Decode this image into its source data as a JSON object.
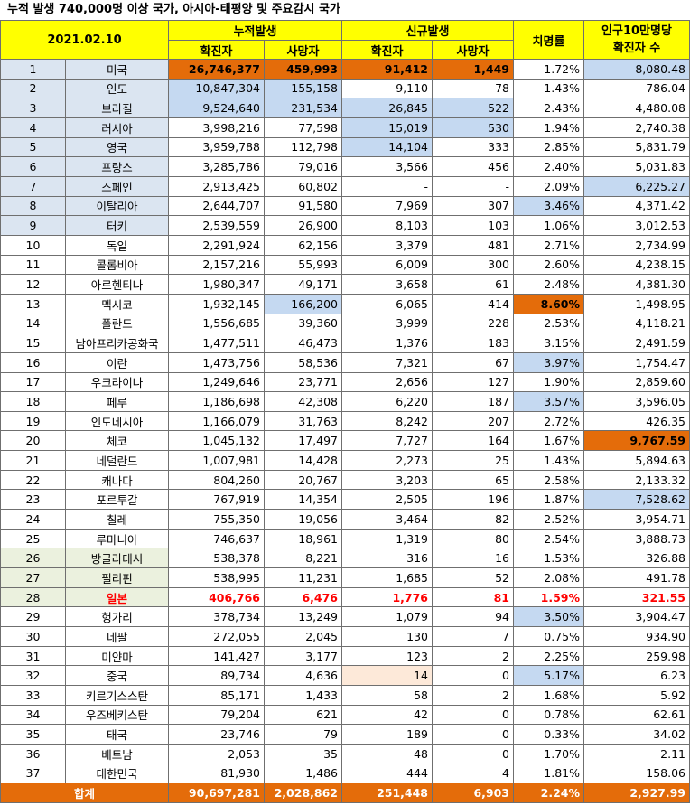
{
  "title": "누적 발생 740,000명 이상 국가, 아시아-태평양 및 주요감시 국가",
  "header": {
    "date": "2021.02.10",
    "cumulative": "누적발생",
    "new": "신규발생",
    "fatality": "치명률",
    "per100k_line1": "인구10만명당",
    "per100k_line2": "확진자 수",
    "confirmed": "확진자",
    "deaths": "사망자",
    "new_confirmed": "확진자",
    "new_deaths": "사망자"
  },
  "rows": [
    {
      "n": "1",
      "country": "미국",
      "conf": "26,746,377",
      "death": "459,993",
      "nconf": "91,412",
      "ndeath": "1,449",
      "cfr": "1.72%",
      "per": "8,080.48"
    },
    {
      "n": "2",
      "country": "인도",
      "conf": "10,847,304",
      "death": "155,158",
      "nconf": "9,110",
      "ndeath": "78",
      "cfr": "1.43%",
      "per": "786.04"
    },
    {
      "n": "3",
      "country": "브라질",
      "conf": "9,524,640",
      "death": "231,534",
      "nconf": "26,845",
      "ndeath": "522",
      "cfr": "2.43%",
      "per": "4,480.08"
    },
    {
      "n": "4",
      "country": "러시아",
      "conf": "3,998,216",
      "death": "77,598",
      "nconf": "15,019",
      "ndeath": "530",
      "cfr": "1.94%",
      "per": "2,740.38"
    },
    {
      "n": "5",
      "country": "영국",
      "conf": "3,959,788",
      "death": "112,798",
      "nconf": "14,104",
      "ndeath": "333",
      "cfr": "2.85%",
      "per": "5,831.79"
    },
    {
      "n": "6",
      "country": "프랑스",
      "conf": "3,285,786",
      "death": "79,016",
      "nconf": "3,566",
      "ndeath": "456",
      "cfr": "2.40%",
      "per": "5,031.83"
    },
    {
      "n": "7",
      "country": "스페인",
      "conf": "2,913,425",
      "death": "60,802",
      "nconf": "-",
      "ndeath": "-",
      "cfr": "2.09%",
      "per": "6,225.27"
    },
    {
      "n": "8",
      "country": "이탈리아",
      "conf": "2,644,707",
      "death": "91,580",
      "nconf": "7,969",
      "ndeath": "307",
      "cfr": "3.46%",
      "per": "4,371.42"
    },
    {
      "n": "9",
      "country": "터키",
      "conf": "2,539,559",
      "death": "26,900",
      "nconf": "8,103",
      "ndeath": "103",
      "cfr": "1.06%",
      "per": "3,012.53"
    },
    {
      "n": "10",
      "country": "독일",
      "conf": "2,291,924",
      "death": "62,156",
      "nconf": "3,379",
      "ndeath": "481",
      "cfr": "2.71%",
      "per": "2,734.99"
    },
    {
      "n": "11",
      "country": "콜롬비아",
      "conf": "2,157,216",
      "death": "55,993",
      "nconf": "6,009",
      "ndeath": "300",
      "cfr": "2.60%",
      "per": "4,238.15"
    },
    {
      "n": "12",
      "country": "아르헨티나",
      "conf": "1,980,347",
      "death": "49,171",
      "nconf": "3,658",
      "ndeath": "61",
      "cfr": "2.48%",
      "per": "4,381.30"
    },
    {
      "n": "13",
      "country": "멕시코",
      "conf": "1,932,145",
      "death": "166,200",
      "nconf": "6,065",
      "ndeath": "414",
      "cfr": "8.60%",
      "per": "1,498.95"
    },
    {
      "n": "14",
      "country": "폴란드",
      "conf": "1,556,685",
      "death": "39,360",
      "nconf": "3,999",
      "ndeath": "228",
      "cfr": "2.53%",
      "per": "4,118.21"
    },
    {
      "n": "15",
      "country": "남아프리카공화국",
      "conf": "1,477,511",
      "death": "46,473",
      "nconf": "1,376",
      "ndeath": "183",
      "cfr": "3.15%",
      "per": "2,491.59"
    },
    {
      "n": "16",
      "country": "이란",
      "conf": "1,473,756",
      "death": "58,536",
      "nconf": "7,321",
      "ndeath": "67",
      "cfr": "3.97%",
      "per": "1,754.47"
    },
    {
      "n": "17",
      "country": "우크라이나",
      "conf": "1,249,646",
      "death": "23,771",
      "nconf": "2,656",
      "ndeath": "127",
      "cfr": "1.90%",
      "per": "2,859.60"
    },
    {
      "n": "18",
      "country": "페루",
      "conf": "1,186,698",
      "death": "42,308",
      "nconf": "6,220",
      "ndeath": "187",
      "cfr": "3.57%",
      "per": "3,596.05"
    },
    {
      "n": "19",
      "country": "인도네시아",
      "conf": "1,166,079",
      "death": "31,763",
      "nconf": "8,242",
      "ndeath": "207",
      "cfr": "2.72%",
      "per": "426.35"
    },
    {
      "n": "20",
      "country": "체코",
      "conf": "1,045,132",
      "death": "17,497",
      "nconf": "7,727",
      "ndeath": "164",
      "cfr": "1.67%",
      "per": "9,767.59"
    },
    {
      "n": "21",
      "country": "네덜란드",
      "conf": "1,007,981",
      "death": "14,428",
      "nconf": "2,273",
      "ndeath": "25",
      "cfr": "1.43%",
      "per": "5,894.63"
    },
    {
      "n": "22",
      "country": "캐나다",
      "conf": "804,260",
      "death": "20,767",
      "nconf": "3,203",
      "ndeath": "65",
      "cfr": "2.58%",
      "per": "2,133.32"
    },
    {
      "n": "23",
      "country": "포르투갈",
      "conf": "767,919",
      "death": "14,354",
      "nconf": "2,505",
      "ndeath": "196",
      "cfr": "1.87%",
      "per": "7,528.62"
    },
    {
      "n": "24",
      "country": "칠레",
      "conf": "755,350",
      "death": "19,056",
      "nconf": "3,464",
      "ndeath": "82",
      "cfr": "2.52%",
      "per": "3,954.71"
    },
    {
      "n": "25",
      "country": "루마니아",
      "conf": "746,637",
      "death": "18,961",
      "nconf": "1,319",
      "ndeath": "80",
      "cfr": "2.54%",
      "per": "3,888.73"
    },
    {
      "n": "26",
      "country": "방글라데시",
      "conf": "538,378",
      "death": "8,221",
      "nconf": "316",
      "ndeath": "16",
      "cfr": "1.53%",
      "per": "326.88"
    },
    {
      "n": "27",
      "country": "필리핀",
      "conf": "538,995",
      "death": "11,231",
      "nconf": "1,685",
      "ndeath": "52",
      "cfr": "2.08%",
      "per": "491.78"
    },
    {
      "n": "28",
      "country": "일본",
      "conf": "406,766",
      "death": "6,476",
      "nconf": "1,776",
      "ndeath": "81",
      "cfr": "1.59%",
      "per": "321.55"
    },
    {
      "n": "29",
      "country": "헝가리",
      "conf": "378,734",
      "death": "13,249",
      "nconf": "1,079",
      "ndeath": "94",
      "cfr": "3.50%",
      "per": "3,904.47"
    },
    {
      "n": "30",
      "country": "네팔",
      "conf": "272,055",
      "death": "2,045",
      "nconf": "130",
      "ndeath": "7",
      "cfr": "0.75%",
      "per": "934.90"
    },
    {
      "n": "31",
      "country": "미얀마",
      "conf": "141,427",
      "death": "3,177",
      "nconf": "123",
      "ndeath": "2",
      "cfr": "2.25%",
      "per": "259.98"
    },
    {
      "n": "32",
      "country": "중국",
      "conf": "89,734",
      "death": "4,636",
      "nconf": "14",
      "ndeath": "0",
      "cfr": "5.17%",
      "per": "6.23"
    },
    {
      "n": "33",
      "country": "키르기스스탄",
      "conf": "85,171",
      "death": "1,433",
      "nconf": "58",
      "ndeath": "2",
      "cfr": "1.68%",
      "per": "5.92"
    },
    {
      "n": "34",
      "country": "우즈베키스탄",
      "conf": "79,204",
      "death": "621",
      "nconf": "42",
      "ndeath": "0",
      "cfr": "0.78%",
      "per": "62.61"
    },
    {
      "n": "35",
      "country": "태국",
      "conf": "23,746",
      "death": "79",
      "nconf": "189",
      "ndeath": "0",
      "cfr": "0.33%",
      "per": "34.02"
    },
    {
      "n": "36",
      "country": "베트남",
      "conf": "2,053",
      "death": "35",
      "nconf": "48",
      "ndeath": "0",
      "cfr": "1.70%",
      "per": "2.11"
    },
    {
      "n": "37",
      "country": "대한민국",
      "conf": "81,930",
      "death": "1,486",
      "nconf": "444",
      "ndeath": "4",
      "cfr": "1.81%",
      "per": "158.06"
    }
  ],
  "total": {
    "label": "합계",
    "conf": "90,697,281",
    "death": "2,028,862",
    "nconf": "251,448",
    "ndeath": "6,903",
    "cfr": "2.24%",
    "per": "2,927.99"
  },
  "colors": {
    "header": "#ffff00",
    "orange": "#e46c0a",
    "blue": "#c5d9f1",
    "peach": "#fde9d9",
    "group1": "#dbe5f1",
    "group2": "#ebf1de",
    "japan": "#ff0000"
  },
  "highlights": {
    "orange": [
      "1.conf",
      "1.death",
      "1.nconf",
      "1.ndeath",
      "13.cfr",
      "20.per"
    ],
    "blue": [
      "1.per",
      "2.conf",
      "2.death",
      "3.conf",
      "3.death",
      "3.nconf",
      "3.ndeath",
      "4.nconf",
      "4.ndeath",
      "5.nconf",
      "7.per",
      "8.cfr",
      "13.death",
      "16.cfr",
      "18.cfr",
      "23.per",
      "29.cfr",
      "32.cfr"
    ],
    "peach": [
      "32.nconf"
    ]
  }
}
